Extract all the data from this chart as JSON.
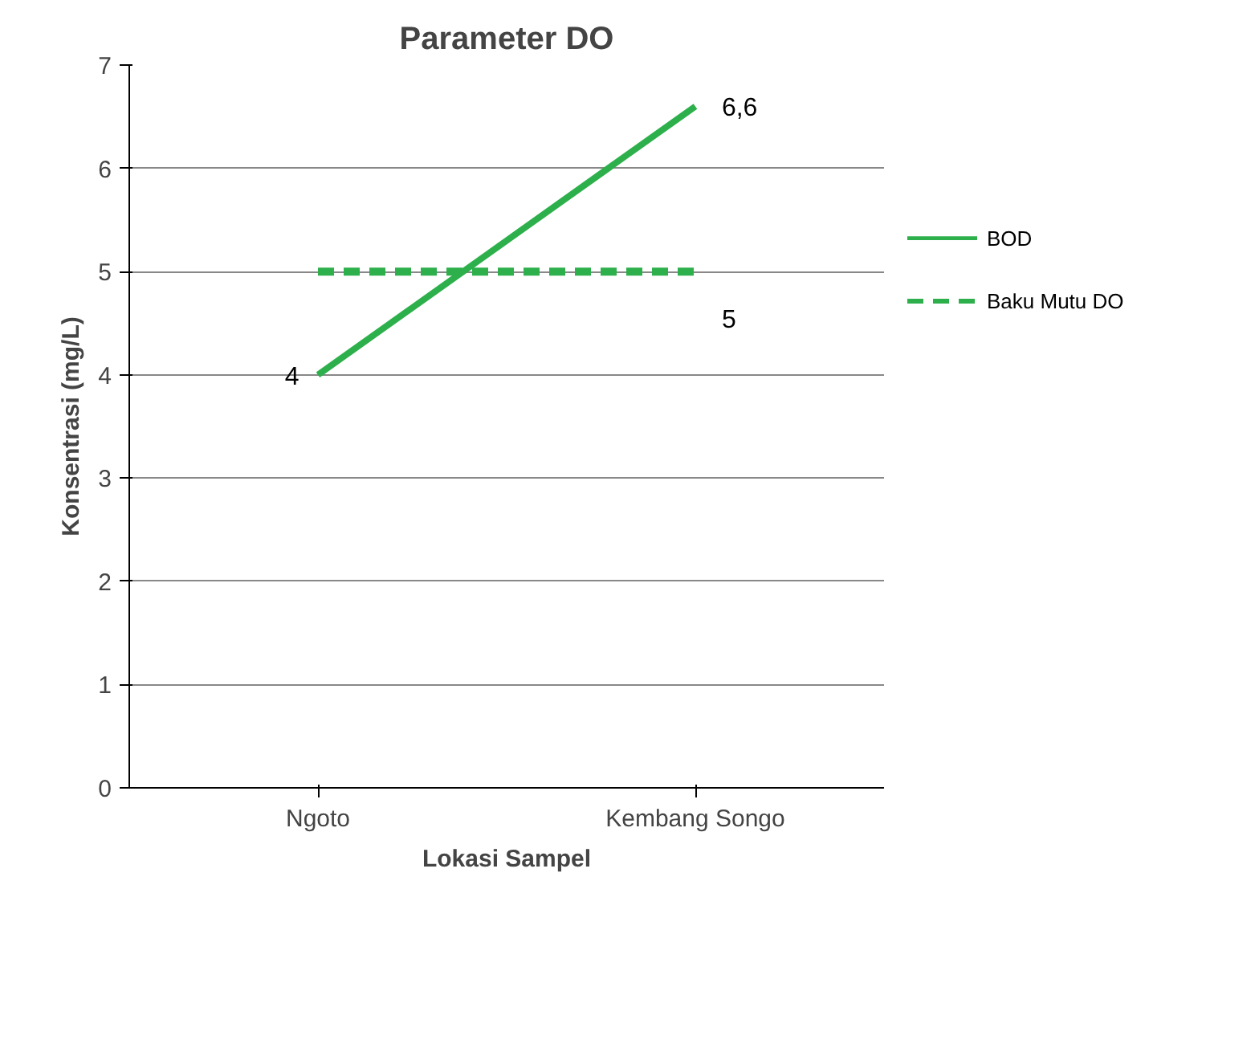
{
  "chart_data": {
    "type": "line",
    "title": "Parameter DO",
    "xlabel": "Lokasi Sampel",
    "ylabel": "Konsentrasi (mg/L)",
    "categories": [
      "Ngoto",
      "Kembang Songo"
    ],
    "series": [
      {
        "name": "BOD",
        "color": "#2db04b",
        "values": [
          4,
          6.6
        ],
        "value_labels": [
          "4",
          "6,6"
        ],
        "line_style": "solid"
      },
      {
        "name": "Baku Mutu DO",
        "color": "#2db04b",
        "values": [
          5,
          5
        ],
        "value_labels": [
          null,
          "5"
        ],
        "line_style": "dashed"
      }
    ],
    "ylim": [
      0,
      7
    ],
    "yticks": [
      0,
      1,
      2,
      3,
      4,
      5,
      6,
      7
    ],
    "grid": "y",
    "legend": "right",
    "marker": "none"
  }
}
